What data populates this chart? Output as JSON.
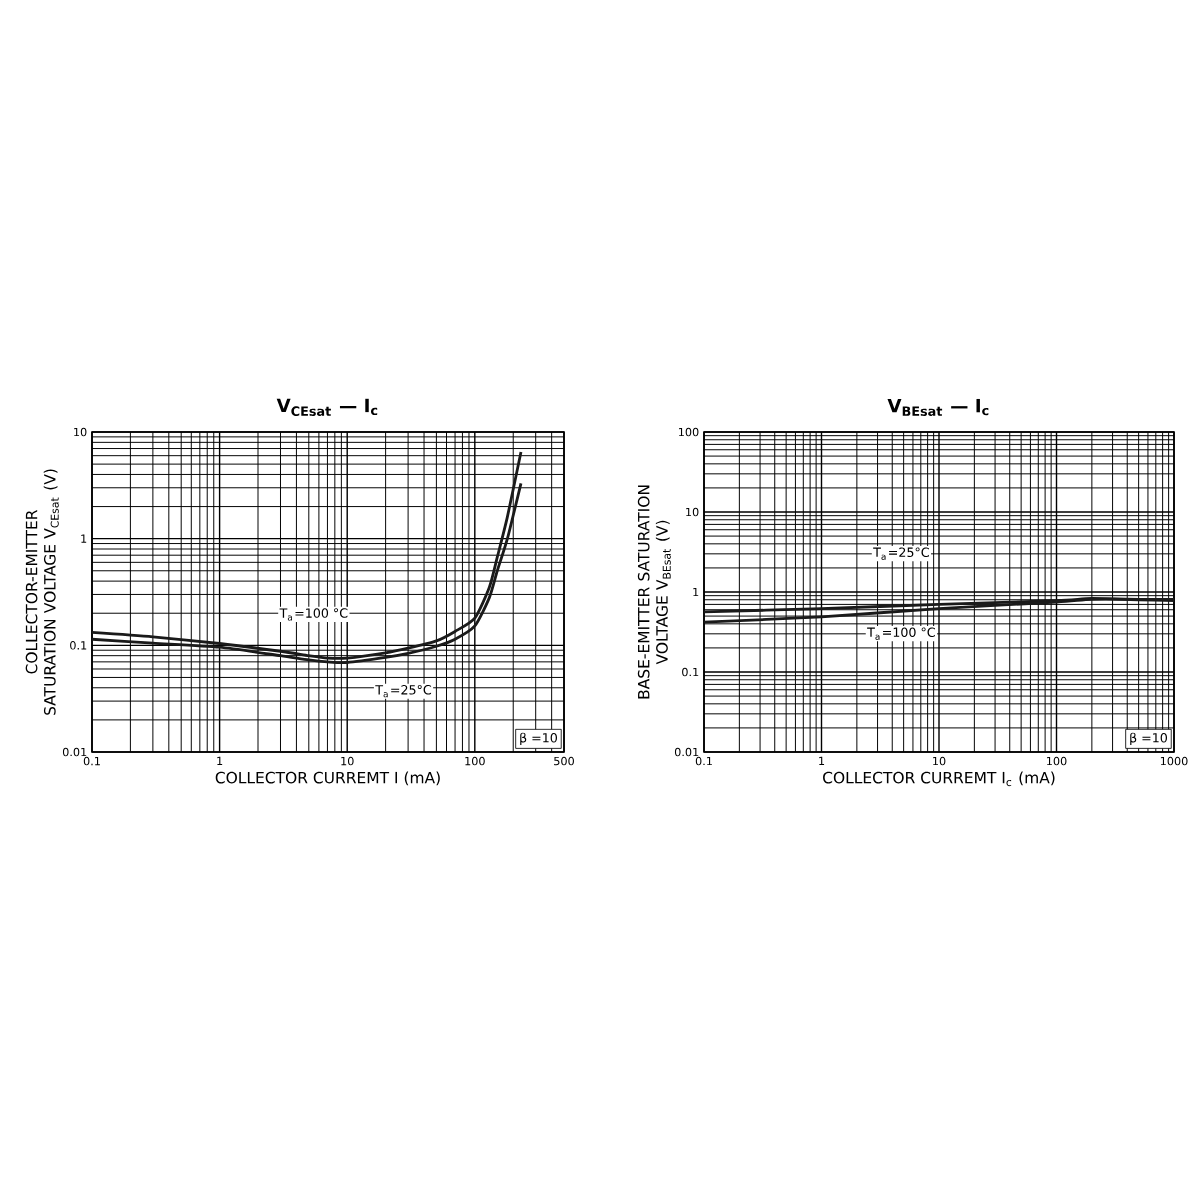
{
  "chart_data": [
    {
      "type": "line",
      "title": "V$_{CEsat}$ — I$_{c}$",
      "xlabel": "COLLECTOR CURREMT I (mA)",
      "ylabel": "COLLECTOR-EMITTER SATURATION VOLTAGE V$_{CEsat}$ (V)",
      "log": "xy",
      "grid": true,
      "marker": "none",
      "line_style": "solid",
      "xlim": [
        0.1,
        500
      ],
      "ylim": [
        0.01,
        10
      ],
      "xticks": [
        0.1,
        1,
        10,
        100,
        500
      ],
      "yticks": [
        0.01,
        0.1,
        1,
        10
      ],
      "series": [
        {
          "color": "#1a1a1a",
          "x": [
            0.1,
            0.3,
            1,
            3,
            5,
            7,
            10,
            20,
            30,
            50,
            70,
            100,
            130,
            150,
            180,
            230
          ],
          "values": [
            0.132,
            0.12,
            0.104,
            0.088,
            0.08,
            0.076,
            0.076,
            0.085,
            0.094,
            0.11,
            0.135,
            0.18,
            0.35,
            0.67,
            1.6,
            6.5
          ]
        },
        {
          "color": "#1a1a1a",
          "x": [
            0.1,
            0.3,
            1,
            3,
            5,
            7,
            10,
            20,
            30,
            50,
            70,
            100,
            130,
            150,
            180,
            230
          ],
          "values": [
            0.114,
            0.105,
            0.096,
            0.08,
            0.073,
            0.07,
            0.069,
            0.077,
            0.084,
            0.098,
            0.114,
            0.152,
            0.28,
            0.5,
            1.0,
            3.3
          ]
        }
      ],
      "annotations": [
        "T$_{a}$=100 °C",
        "T$_{a}$=25°C",
        "β =10"
      ]
    },
    {
      "type": "line",
      "title": "V$_{BEsat}$ — I$_{c}$",
      "xlabel": "COLLECTOR CURREMT I$_{c}$ (mA)",
      "ylabel": "BASE-EMITTER SATURATION VOLTAGE V$_{BEsat}$ (V)",
      "log": "xy",
      "grid": true,
      "marker": "none",
      "line_style": "solid",
      "xlim": [
        0.1,
        1000
      ],
      "ylim": [
        0.01,
        100
      ],
      "xticks": [
        0.1,
        1,
        10,
        100,
        1000
      ],
      "yticks": [
        0.01,
        0.1,
        1,
        10,
        100
      ],
      "series": [
        {
          "color": "#1a1a1a",
          "x": [
            0.1,
            1,
            10,
            100,
            200,
            500,
            1000
          ],
          "values": [
            0.565,
            0.62,
            0.7,
            0.78,
            0.83,
            0.8,
            0.78
          ]
        },
        {
          "color": "#1a1a1a",
          "x": [
            0.1,
            1,
            10,
            100,
            200,
            500,
            1000
          ],
          "values": [
            0.42,
            0.49,
            0.62,
            0.75,
            0.81,
            0.81,
            0.81
          ]
        }
      ],
      "annotations": [
        "T$_{a}$=25°C",
        "T$_{a}$=100 °C",
        "β =10"
      ]
    }
  ]
}
